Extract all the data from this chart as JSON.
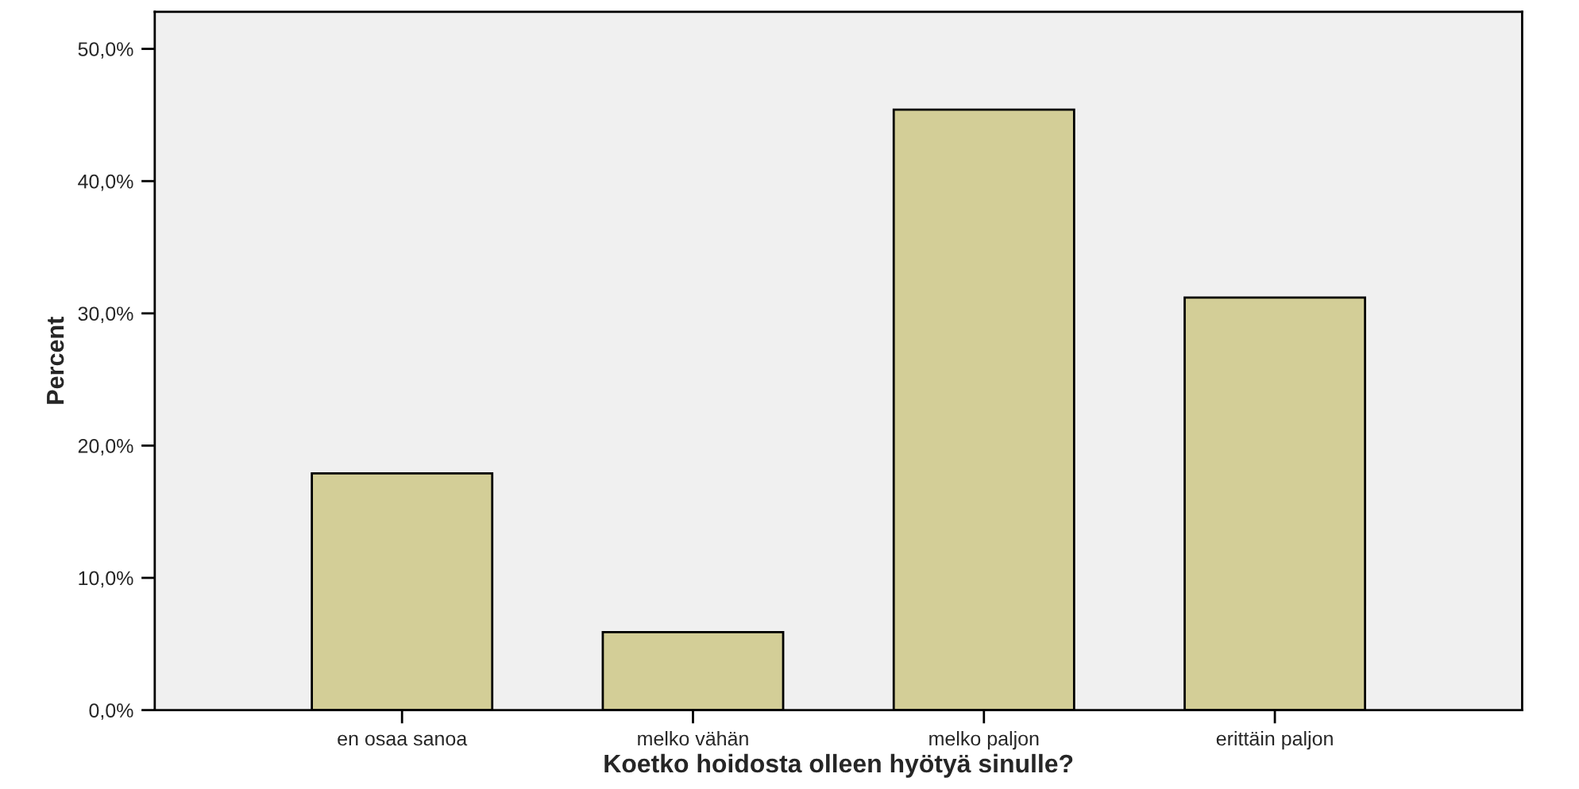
{
  "chart_data": {
    "type": "bar",
    "xlabel": "Koetko hoidosta olleen hyötyä sinulle?",
    "ylabel": "Percent",
    "categories": [
      "en osaa sanoa",
      "melko vähän",
      "melko paljon",
      "erittäin paljon"
    ],
    "values": [
      17.9,
      5.9,
      45.4,
      31.2
    ],
    "color": "#d3ce97",
    "ylim": [
      0,
      52.8
    ],
    "yticks": [
      {
        "value": 0,
        "label": "0,0%"
      },
      {
        "value": 10,
        "label": "10,0%"
      },
      {
        "value": 20,
        "label": "20,0%"
      },
      {
        "value": 30,
        "label": "30,0%"
      },
      {
        "value": 40,
        "label": "40,0%"
      },
      {
        "value": 50,
        "label": "50,0%"
      }
    ],
    "grid": false
  }
}
